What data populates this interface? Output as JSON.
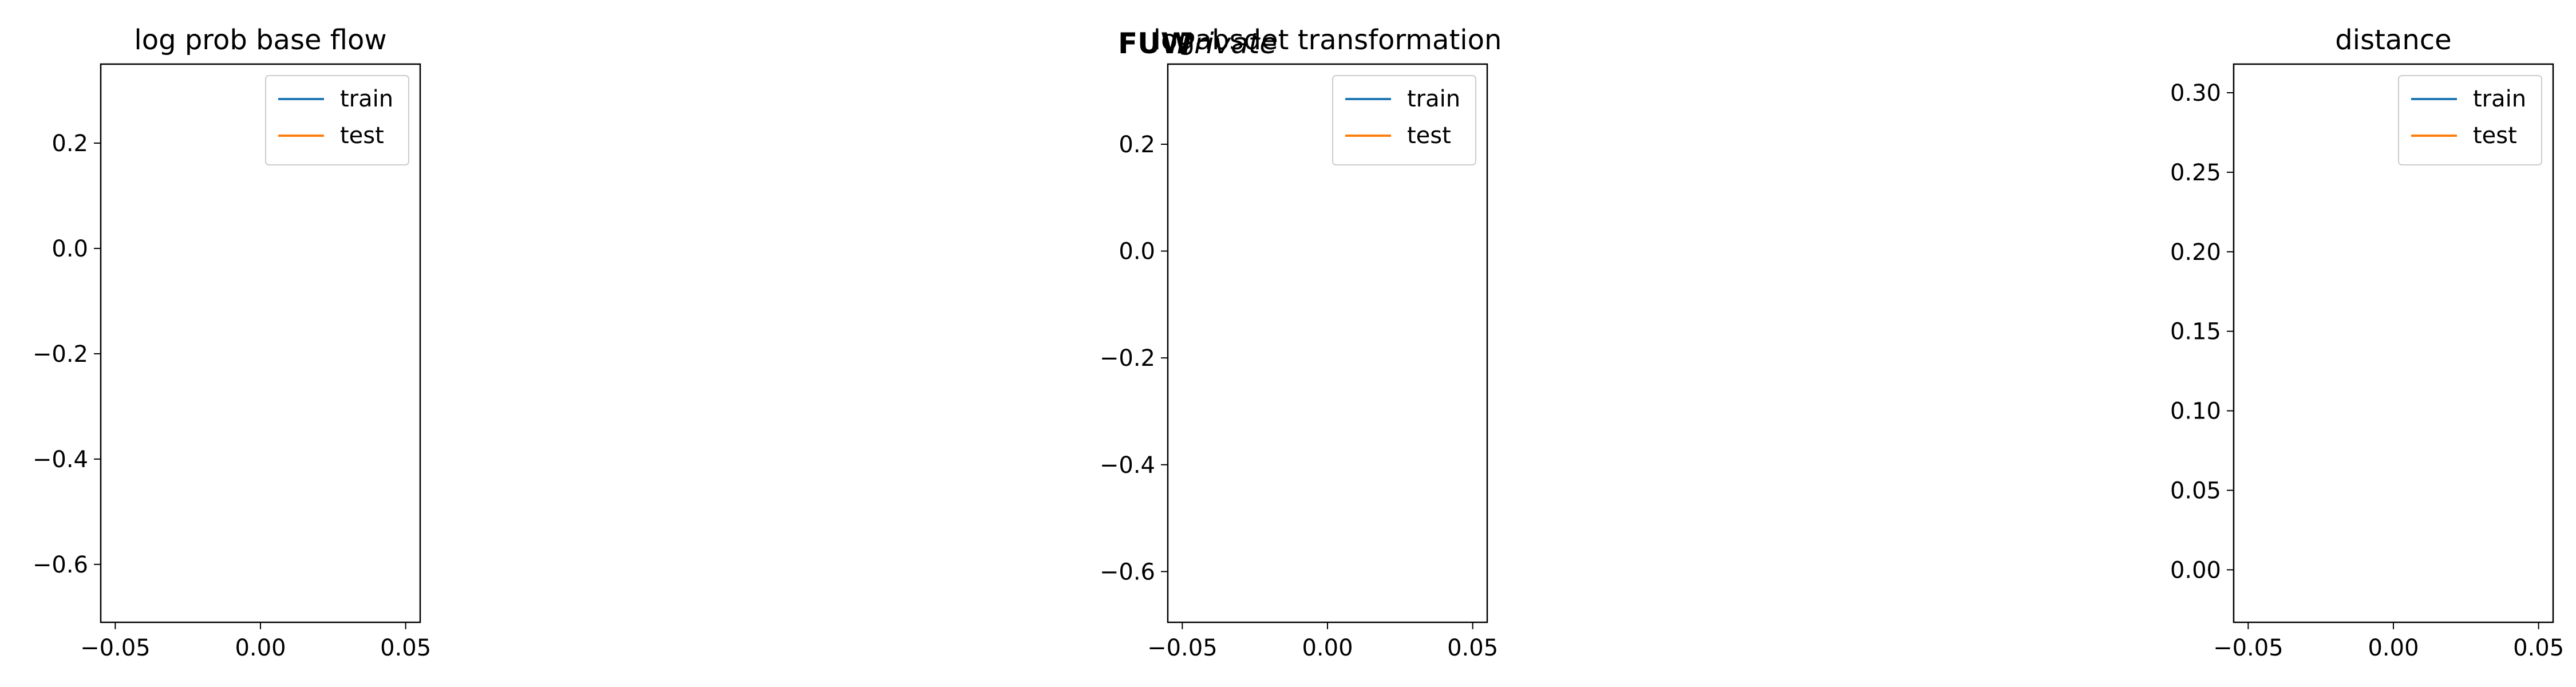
{
  "watermark": {
    "bold": "FUW",
    "italic": "Private"
  },
  "chart_data": [
    {
      "type": "line",
      "title": "log prob base flow",
      "xlim": [
        -0.055,
        0.055
      ],
      "ylim": [
        -0.71,
        0.35
      ],
      "xticks": [
        -0.05,
        0.0,
        0.05
      ],
      "xtick_labels": [
        "−0.05",
        "0.00",
        "0.05"
      ],
      "yticks": [
        0.2,
        0.0,
        -0.2,
        -0.4,
        -0.6
      ],
      "ytick_labels": [
        "0.2",
        "0.0",
        "−0.2",
        "−0.4",
        "−0.6"
      ],
      "series": [
        {
          "name": "train",
          "color": "#1f77b4",
          "x": [],
          "y": []
        },
        {
          "name": "test",
          "color": "#ff7f0e",
          "x": [],
          "y": []
        }
      ],
      "legend": "top-right",
      "grid": false
    },
    {
      "type": "line",
      "title": "logabsdet transformation",
      "xlim": [
        -0.055,
        0.055
      ],
      "ylim": [
        -0.695,
        0.35
      ],
      "xticks": [
        -0.05,
        0.0,
        0.05
      ],
      "xtick_labels": [
        "−0.05",
        "0.00",
        "0.05"
      ],
      "yticks": [
        0.2,
        0.0,
        -0.2,
        -0.4,
        -0.6
      ],
      "ytick_labels": [
        "0.2",
        "0.0",
        "−0.2",
        "−0.4",
        "−0.6"
      ],
      "series": [
        {
          "name": "train",
          "color": "#1f77b4",
          "x": [],
          "y": []
        },
        {
          "name": "test",
          "color": "#ff7f0e",
          "x": [],
          "y": []
        }
      ],
      "legend": "top-right",
      "grid": false
    },
    {
      "type": "line",
      "title": "distance",
      "xlim": [
        -0.055,
        0.055
      ],
      "ylim": [
        -0.033,
        0.318
      ],
      "xticks": [
        -0.05,
        0.0,
        0.05
      ],
      "xtick_labels": [
        "−0.05",
        "0.00",
        "0.05"
      ],
      "yticks": [
        0.3,
        0.25,
        0.2,
        0.15,
        0.1,
        0.05,
        0.0
      ],
      "ytick_labels": [
        "0.30",
        "0.25",
        "0.20",
        "0.15",
        "0.10",
        "0.05",
        "0.00"
      ],
      "series": [
        {
          "name": "train",
          "color": "#1f77b4",
          "x": [],
          "y": []
        },
        {
          "name": "test",
          "color": "#ff7f0e",
          "x": [],
          "y": []
        }
      ],
      "legend": "top-right",
      "grid": false
    }
  ]
}
